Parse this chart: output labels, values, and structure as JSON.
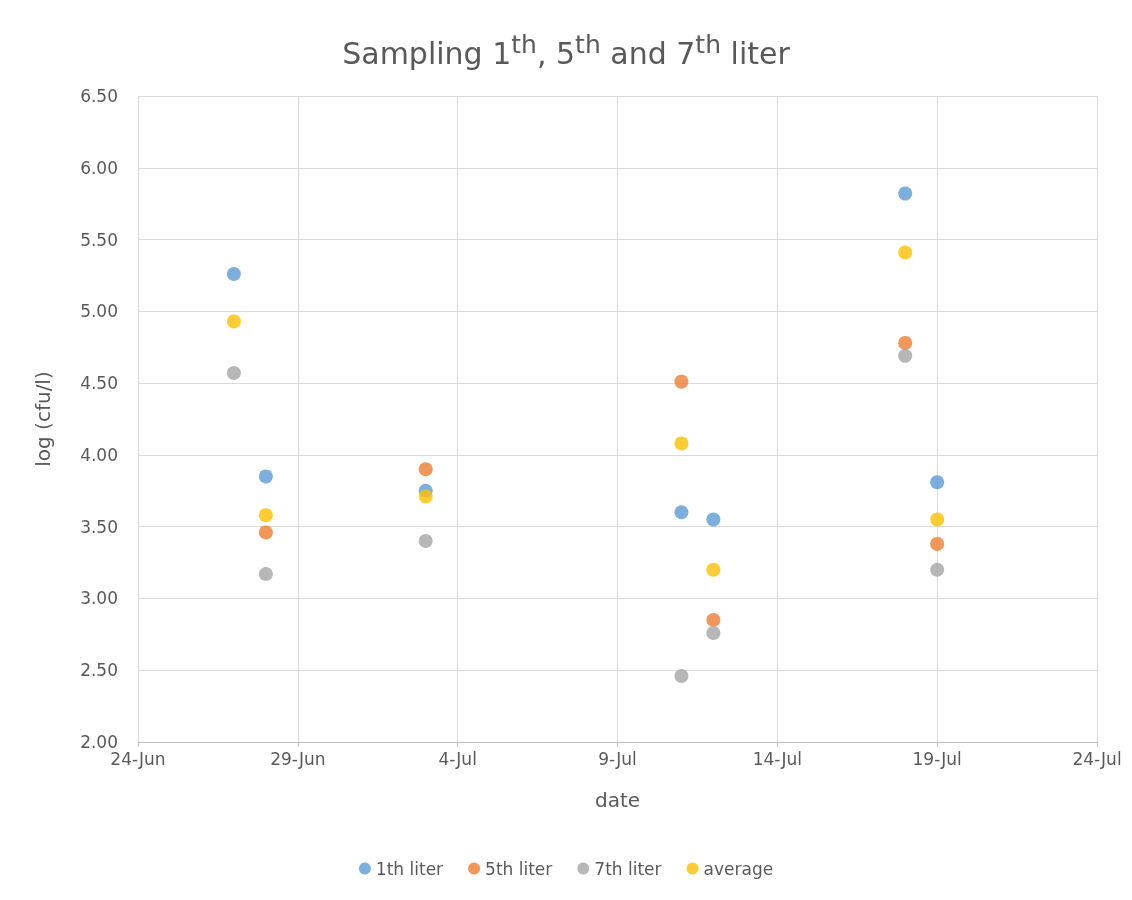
{
  "chart_data": {
    "type": "scatter",
    "title": "Sampling 1$^{th}$, 5$^{th}$ and 7$^{th}$ liter",
    "xlabel": "date",
    "ylabel": "log (cfu/l)",
    "x": [
      "--06-27",
      "--06-28",
      "--07-03",
      "--07-11",
      "--07-12",
      "--07-18",
      "--07-19"
    ],
    "series": [
      {
        "name": "1th liter",
        "color": "#5b9bd5",
        "values": [
          5.26,
          3.85,
          3.75,
          3.6,
          3.55,
          5.82,
          3.81
        ]
      },
      {
        "name": "5th liter",
        "color": "#ed7d31",
        "values": [
          null,
          3.46,
          3.9,
          4.51,
          2.85,
          4.78,
          3.38
        ]
      },
      {
        "name": "7th liter",
        "color": "#a5a5a5",
        "values": [
          4.57,
          3.17,
          3.4,
          2.46,
          2.76,
          4.69,
          3.2
        ]
      },
      {
        "name": "average",
        "color": "#ffc000",
        "values": [
          4.93,
          3.58,
          3.71,
          4.08,
          3.2,
          5.41,
          3.55
        ]
      }
    ],
    "xlim": [
      "--06-24",
      "--07-24"
    ],
    "xticks": [
      {
        "value": "--06-24",
        "label": "24-Jun"
      },
      {
        "value": "--06-29",
        "label": "29-Jun"
      },
      {
        "value": "--07-04",
        "label": "4-Jul"
      },
      {
        "value": "--07-09",
        "label": "9-Jul"
      },
      {
        "value": "--07-14",
        "label": "14-Jul"
      },
      {
        "value": "--07-19",
        "label": "19-Jul"
      },
      {
        "value": "--07-24",
        "label": "24-Jul"
      }
    ],
    "ylim": [
      2,
      6.5
    ],
    "yticks": [
      {
        "value": 2,
        "label": "2.00"
      },
      {
        "value": 2.5,
        "label": "2.50"
      },
      {
        "value": 3,
        "label": "3.00"
      },
      {
        "value": 3.5,
        "label": "3.50"
      },
      {
        "value": 4,
        "label": "4.00"
      },
      {
        "value": 4.5,
        "label": "4.50"
      },
      {
        "value": 5,
        "label": "5.00"
      },
      {
        "value": 5.5,
        "label": "5.50"
      },
      {
        "value": 6,
        "label": "6.00"
      },
      {
        "value": 6.5,
        "label": "6.50"
      }
    ],
    "grid": true,
    "legend": "bottom",
    "marker": "circle"
  }
}
